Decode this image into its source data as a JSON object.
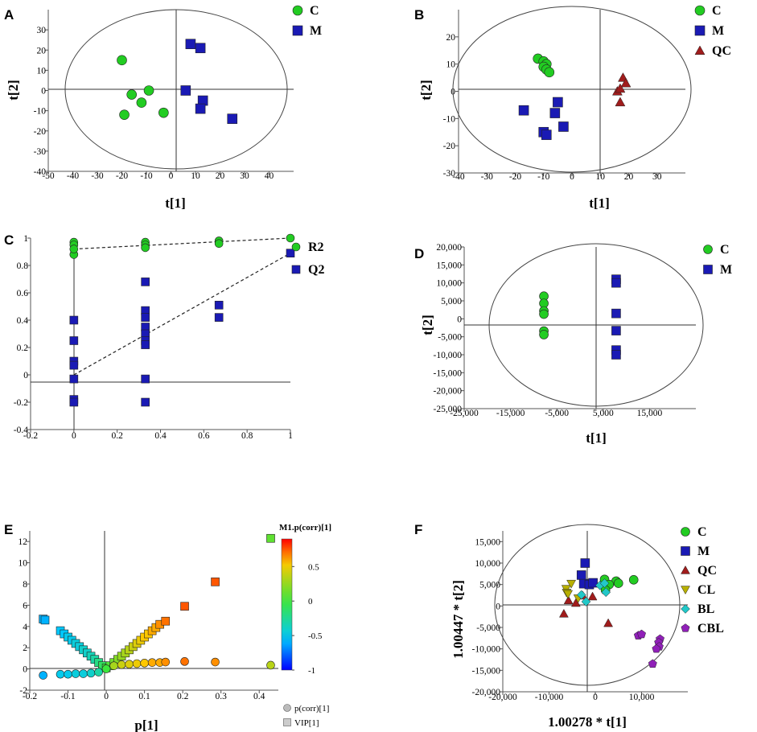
{
  "chart_data": [
    {
      "panel": "A",
      "type": "scatter",
      "xlabel": "t[1]",
      "ylabel": "t[2]",
      "xlim": [
        -50,
        50
      ],
      "ylim": [
        -40,
        40
      ],
      "xticks": [
        "-50",
        "-40",
        "-30",
        "-20",
        "-10",
        "0",
        "10",
        "20",
        "30",
        "40"
      ],
      "yticks": [
        "30",
        "20",
        "10",
        "0",
        "-10",
        "-20",
        "-30",
        "-40"
      ],
      "legend": [
        "C",
        "M"
      ],
      "series": [
        {
          "name": "C",
          "color": "#22cc22",
          "marker": "circle",
          "points": [
            [
              -20,
              15
            ],
            [
              -19,
              -12
            ],
            [
              -16,
              -2
            ],
            [
              -12,
              -6
            ],
            [
              -9,
              0
            ],
            [
              -3,
              -11
            ]
          ]
        },
        {
          "name": "M",
          "color": "#1a1ab4",
          "marker": "square",
          "points": [
            [
              8,
              23
            ],
            [
              12,
              21
            ],
            [
              6,
              0
            ],
            [
              13,
              -5
            ],
            [
              12,
              -9
            ],
            [
              25,
              -14
            ]
          ]
        }
      ]
    },
    {
      "panel": "B",
      "type": "scatter",
      "xlabel": "t[1]",
      "ylabel": "t[2]",
      "xlim": [
        -40,
        40
      ],
      "ylim": [
        -30,
        30
      ],
      "xticks": [
        "-40",
        "-30",
        "-20",
        "-10",
        "0",
        "10",
        "20",
        "30"
      ],
      "yticks": [
        "20",
        "10",
        "0",
        "-10",
        "-20",
        "-30"
      ],
      "legend": [
        "C",
        "M",
        "QC"
      ],
      "series": [
        {
          "name": "C",
          "color": "#22cc22",
          "marker": "circle",
          "points": [
            [
              -12,
              12
            ],
            [
              -10,
              11
            ],
            [
              -9,
              10
            ],
            [
              -10,
              9
            ],
            [
              -9,
              8
            ],
            [
              -8,
              7
            ]
          ]
        },
        {
          "name": "M",
          "color": "#1a1ab4",
          "marker": "square",
          "points": [
            [
              -17,
              -7
            ],
            [
              -10,
              -15
            ],
            [
              -9,
              -16
            ],
            [
              -6,
              -8
            ],
            [
              -5,
              -4
            ],
            [
              -3,
              -13
            ]
          ]
        },
        {
          "name": "QC",
          "color": "#a01c1c",
          "marker": "triangle",
          "points": [
            [
              16,
              0
            ],
            [
              17,
              -4
            ],
            [
              18,
              5
            ],
            [
              19,
              3
            ],
            [
              17,
              1
            ]
          ]
        }
      ]
    },
    {
      "panel": "C",
      "type": "scatter",
      "xlim": [
        -0.2,
        1
      ],
      "ylim": [
        -0.4,
        1
      ],
      "xticks": [
        "-0.2",
        "0",
        "0.2",
        "0.4",
        "0.6",
        "0.8",
        "1"
      ],
      "yticks": [
        "1",
        "0.8",
        "0.6",
        "0.4",
        "0.2",
        "0",
        "-0.2",
        "-0.4"
      ],
      "legend": [
        "R2",
        "Q2"
      ],
      "series": [
        {
          "name": "R2",
          "color": "#22cc22",
          "marker": "circle",
          "points": [
            [
              0,
              0.97
            ],
            [
              0,
              0.95
            ],
            [
              0,
              0.88
            ],
            [
              0,
              0.92
            ],
            [
              0.33,
              0.97
            ],
            [
              0.33,
              0.95
            ],
            [
              0.33,
              0.93
            ],
            [
              0.67,
              0.98
            ],
            [
              0.67,
              0.96
            ],
            [
              1,
              1.0
            ]
          ]
        },
        {
          "name": "Q2",
          "color": "#1a1ab4",
          "marker": "square",
          "points": [
            [
              0,
              0.4
            ],
            [
              0,
              0.25
            ],
            [
              0,
              0.1
            ],
            [
              0,
              0.07
            ],
            [
              0,
              -0.03
            ],
            [
              0,
              -0.18
            ],
            [
              0,
              -0.2
            ],
            [
              0.33,
              0.68
            ],
            [
              0.33,
              0.47
            ],
            [
              0.33,
              0.42
            ],
            [
              0.33,
              0.35
            ],
            [
              0.33,
              0.3
            ],
            [
              0.33,
              0.25
            ],
            [
              0.33,
              0.22
            ],
            [
              0.33,
              -0.03
            ],
            [
              0.33,
              -0.2
            ],
            [
              0.67,
              0.51
            ],
            [
              0.67,
              0.42
            ],
            [
              1,
              0.89
            ]
          ]
        }
      ],
      "lines": [
        {
          "name": "R2 intercept",
          "points": [
            [
              0,
              0.92
            ],
            [
              1,
              1.0
            ]
          ]
        },
        {
          "name": "Q2 intercept",
          "points": [
            [
              0,
              0.0
            ],
            [
              1,
              0.89
            ]
          ]
        }
      ]
    },
    {
      "panel": "D",
      "type": "scatter",
      "xlabel": "t[1]",
      "ylabel": "t[2]",
      "xlim": [
        -25000,
        25000
      ],
      "ylim": [
        -25000,
        20000
      ],
      "xticks": [
        "-25,000",
        "-15,000",
        "-5,000",
        "5,000",
        "15,000"
      ],
      "yticks": [
        "20,000",
        "15,000",
        "10,000",
        "5,000",
        "0",
        "-5,000",
        "-10,000",
        "-15,000",
        "-20,000",
        "-25,000"
      ],
      "legend": [
        "C",
        "M"
      ],
      "series": [
        {
          "name": "C",
          "color": "#22cc22",
          "marker": "circle",
          "points": [
            [
              -7800,
              6300
            ],
            [
              -7800,
              4300
            ],
            [
              -7800,
              2200
            ],
            [
              -7800,
              1300
            ],
            [
              -7800,
              -3400
            ],
            [
              -7800,
              -4400
            ]
          ]
        },
        {
          "name": "M",
          "color": "#1a1ab4",
          "marker": "square",
          "points": [
            [
              7800,
              11000
            ],
            [
              7800,
              10000
            ],
            [
              7800,
              1500
            ],
            [
              7800,
              -3300
            ],
            [
              7800,
              -8700
            ],
            [
              7800,
              -10000
            ]
          ]
        }
      ]
    },
    {
      "panel": "E",
      "type": "scatter",
      "xlabel": "p[1]",
      "xlim": [
        -0.2,
        0.45
      ],
      "ylim": [
        -2,
        13
      ],
      "xticks": [
        "-0.2",
        "-0.1",
        "0",
        "0.1",
        "0.2",
        "0.3",
        "0.4"
      ],
      "yticks": [
        "12",
        "10",
        "8",
        "6",
        "4",
        "2",
        "0",
        "-2"
      ],
      "colorbar": {
        "title": "M1.p(corr)[1]",
        "ticks": [
          "0.5",
          "0",
          "-0.5",
          "-1"
        ],
        "range": [
          -1,
          0.9
        ]
      },
      "legend": [
        "p(corr)[1]",
        "VIP[1]"
      ],
      "series": [
        {
          "name": "VIP[1]",
          "marker": "square",
          "points": [
            [
              -0.165,
              4.7
            ],
            [
              -0.16,
              4.6
            ],
            [
              -0.12,
              3.6
            ],
            [
              -0.11,
              3.3
            ],
            [
              -0.1,
              3.0
            ],
            [
              -0.09,
              2.7
            ],
            [
              -0.08,
              2.4
            ],
            [
              -0.07,
              2.1
            ],
            [
              -0.06,
              1.8
            ],
            [
              -0.05,
              1.5
            ],
            [
              -0.04,
              1.2
            ],
            [
              -0.03,
              0.9
            ],
            [
              -0.02,
              0.6
            ],
            [
              -0.01,
              0.3
            ],
            [
              0.0,
              0.1
            ],
            [
              0.01,
              0.3
            ],
            [
              0.02,
              0.6
            ],
            [
              0.03,
              0.9
            ],
            [
              0.04,
              1.2
            ],
            [
              0.05,
              1.5
            ],
            [
              0.06,
              1.8
            ],
            [
              0.07,
              2.1
            ],
            [
              0.08,
              2.4
            ],
            [
              0.09,
              2.7
            ],
            [
              0.1,
              3.0
            ],
            [
              0.11,
              3.3
            ],
            [
              0.12,
              3.6
            ],
            [
              0.13,
              3.9
            ],
            [
              0.14,
              4.2
            ],
            [
              0.155,
              4.5
            ],
            [
              0.205,
              5.9
            ],
            [
              0.285,
              8.2
            ],
            [
              0.43,
              12.3
            ]
          ],
          "pcorr": [
            -0.6,
            -0.6,
            -0.55,
            -0.55,
            -0.5,
            -0.5,
            -0.45,
            -0.45,
            -0.4,
            -0.4,
            -0.35,
            -0.3,
            -0.2,
            -0.1,
            0.0,
            0.05,
            0.15,
            0.2,
            0.25,
            0.3,
            0.35,
            0.4,
            0.45,
            0.5,
            0.55,
            0.55,
            0.6,
            0.6,
            0.65,
            0.7,
            0.75,
            0.75,
            0.1
          ]
        },
        {
          "name": "p(corr)[1]",
          "marker": "circle",
          "points": [
            [
              -0.165,
              -0.6
            ],
            [
              -0.12,
              -0.5
            ],
            [
              -0.1,
              -0.5
            ],
            [
              -0.08,
              -0.45
            ],
            [
              -0.06,
              -0.45
            ],
            [
              -0.04,
              -0.4
            ],
            [
              -0.02,
              -0.3
            ],
            [
              0.0,
              0.0
            ],
            [
              0.02,
              0.3
            ],
            [
              0.04,
              0.4
            ],
            [
              0.06,
              0.45
            ],
            [
              0.08,
              0.5
            ],
            [
              0.1,
              0.55
            ],
            [
              0.12,
              0.6
            ],
            [
              0.14,
              0.6
            ],
            [
              0.155,
              0.65
            ],
            [
              0.205,
              0.7
            ],
            [
              0.285,
              0.65
            ],
            [
              0.43,
              0.35
            ]
          ],
          "pcorr": [
            -0.6,
            -0.5,
            -0.5,
            -0.45,
            -0.45,
            -0.4,
            -0.3,
            0.0,
            0.3,
            0.4,
            0.45,
            0.5,
            0.55,
            0.6,
            0.6,
            0.65,
            0.7,
            0.65,
            0.35
          ]
        }
      ]
    },
    {
      "panel": "F",
      "type": "scatter",
      "xlabel": "1.00278 * t[1]",
      "ylabel": "1.00447 * t[2]",
      "xlim": [
        -20000,
        20000
      ],
      "ylim": [
        -20000,
        17500
      ],
      "xticks": [
        "-20,000",
        "-10,000",
        "0",
        "10,000"
      ],
      "yticks": [
        "15,000",
        "10,000",
        "5,000",
        "0",
        "-5,000",
        "-10,000",
        "-15,000",
        "-20,000"
      ],
      "legend": [
        "C",
        "M",
        "QC",
        "CL",
        "BL",
        "CBL"
      ],
      "series": [
        {
          "name": "C",
          "color": "#22cc22",
          "marker": "circle",
          "points": [
            [
              2000,
              6200
            ],
            [
              4500,
              5800
            ],
            [
              8300,
              6100
            ],
            [
              3000,
              5000
            ],
            [
              5000,
              5300
            ],
            [
              2200,
              3700
            ]
          ]
        },
        {
          "name": "M",
          "color": "#1a1ab4",
          "marker": "square",
          "points": [
            [
              -3000,
              7200
            ],
            [
              -2200,
              10000
            ],
            [
              -2500,
              5200
            ],
            [
              -1300,
              5000
            ],
            [
              -500,
              5400
            ]
          ]
        },
        {
          "name": "QC",
          "color": "#a01c1c",
          "marker": "triangle",
          "points": [
            [
              -6800,
              -1800
            ],
            [
              -5800,
              1300
            ],
            [
              -4200,
              700
            ],
            [
              -2700,
              2400
            ],
            [
              2800,
              -4000
            ],
            [
              -600,
              2200
            ]
          ]
        },
        {
          "name": "CL",
          "color": "#b8b000",
          "marker": "tri-down",
          "points": [
            [
              -6300,
              4000
            ],
            [
              -6200,
              3100
            ],
            [
              -5900,
              2800
            ],
            [
              -5200,
              5200
            ],
            [
              -3700,
              1800
            ]
          ]
        },
        {
          "name": "BL",
          "color": "#22c8c8",
          "marker": "diamond",
          "points": [
            [
              -3000,
              2600
            ],
            [
              -2000,
              1000
            ],
            [
              1000,
              4800
            ],
            [
              2000,
              5300
            ],
            [
              2300,
              3200
            ]
          ]
        },
        {
          "name": "CBL",
          "color": "#9020b8",
          "marker": "pentagon",
          "points": [
            [
              9300,
              -6900
            ],
            [
              10000,
              -6600
            ],
            [
              14000,
              -7700
            ],
            [
              13700,
              -8500
            ],
            [
              13800,
              -9500
            ],
            [
              12400,
              -13500
            ],
            [
              13200,
              -10000
            ]
          ]
        }
      ]
    }
  ]
}
